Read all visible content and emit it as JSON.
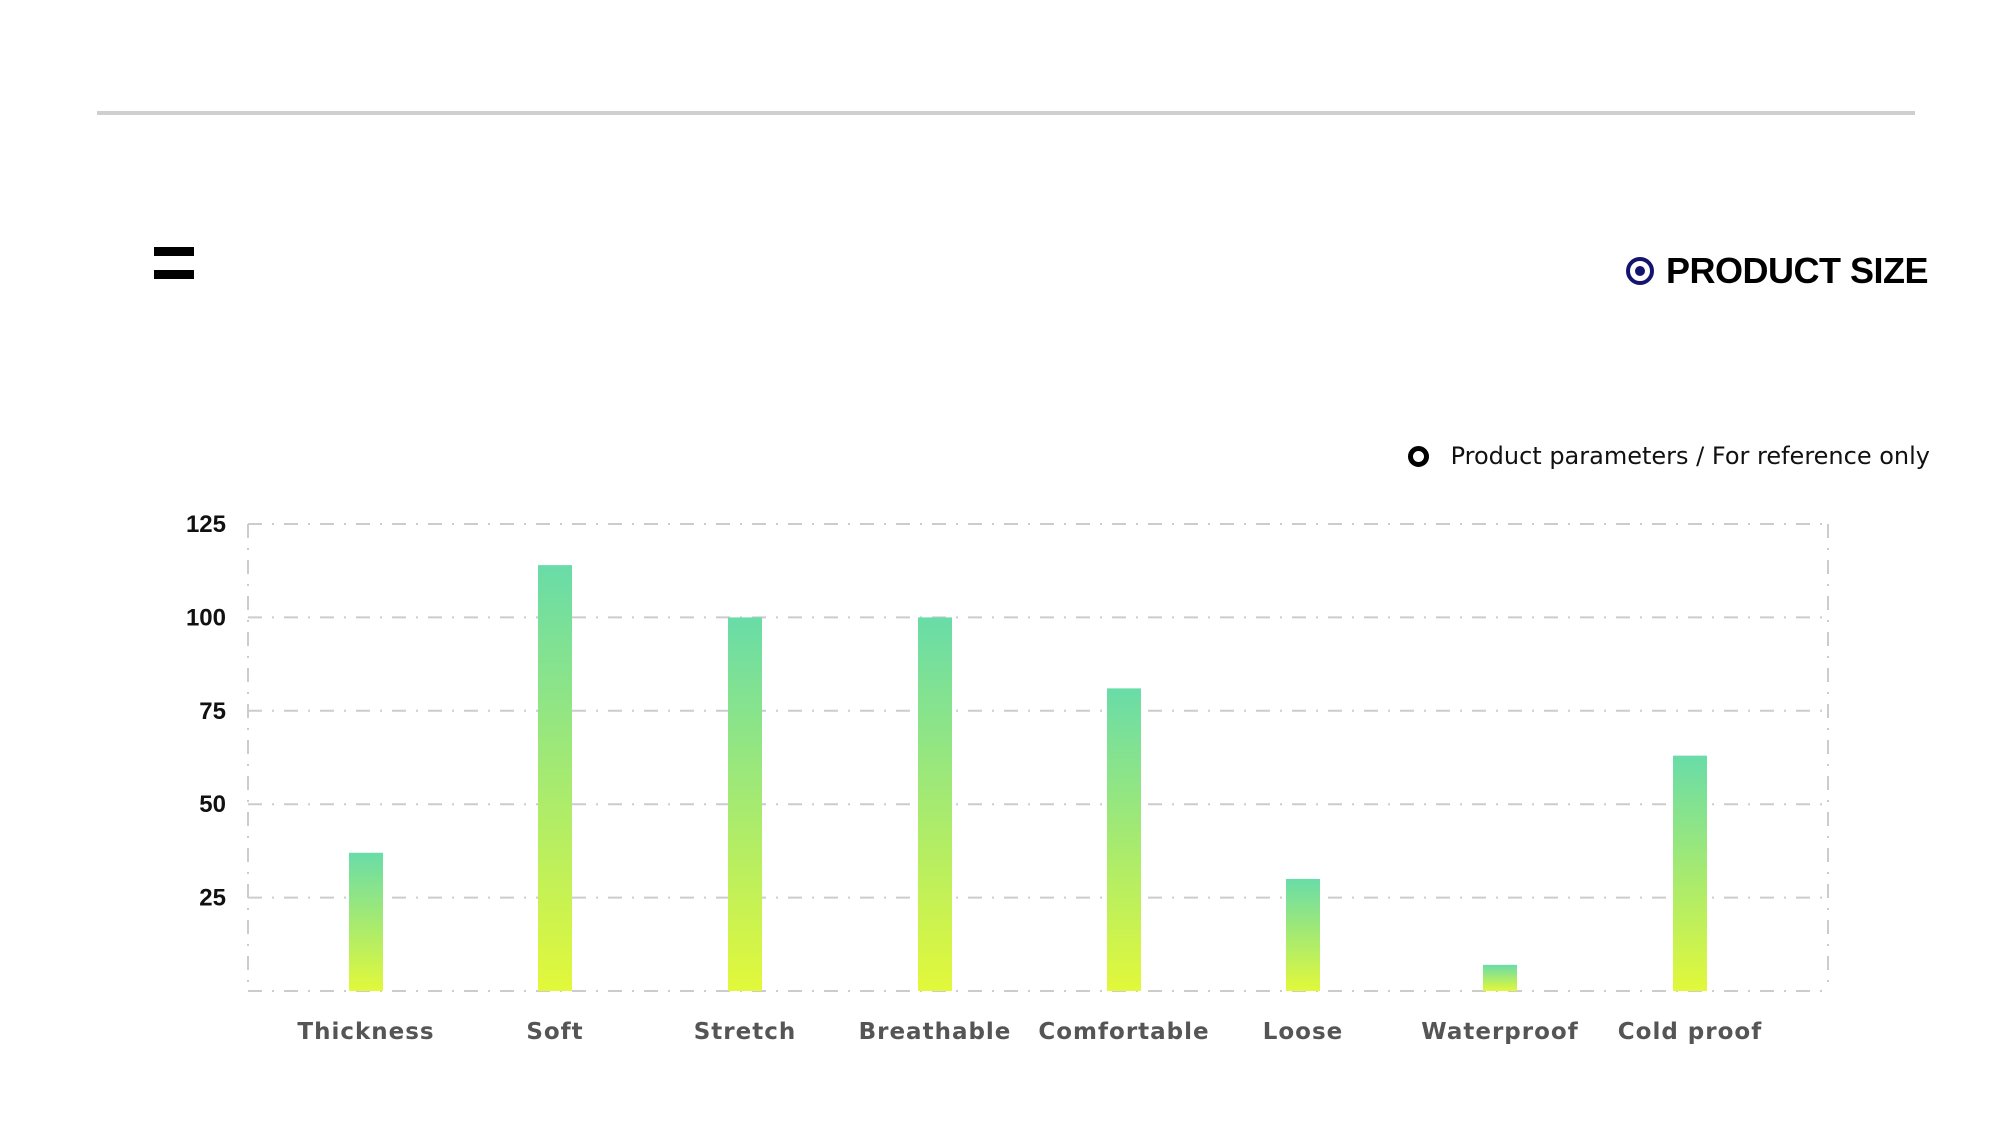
{
  "header": {
    "title": "PRODUCT SIZE",
    "menu_icon": "hamburger-icon",
    "title_icon": "target-circle-icon"
  },
  "note": {
    "text": "Product parameters / For reference only",
    "icon": "ring-bullet-icon"
  },
  "colors": {
    "accent": "#14146e",
    "bar_top": "#69dca8",
    "bar_bottom": "#e2f83a",
    "grid": "#cccccc"
  },
  "chart_data": {
    "type": "bar",
    "categories": [
      "Thickness",
      "Soft",
      "Stretch",
      "Breathable",
      "Comfortable",
      "Loose",
      "Waterproof",
      "Cold proof"
    ],
    "values": [
      37,
      114,
      100,
      100,
      81,
      30,
      7,
      63
    ],
    "ylim": [
      0,
      125
    ],
    "yticks": [
      25,
      50,
      75,
      100,
      125
    ],
    "grid": true,
    "grid_style": "dashed",
    "title": "",
    "xlabel": "",
    "ylabel": ""
  }
}
